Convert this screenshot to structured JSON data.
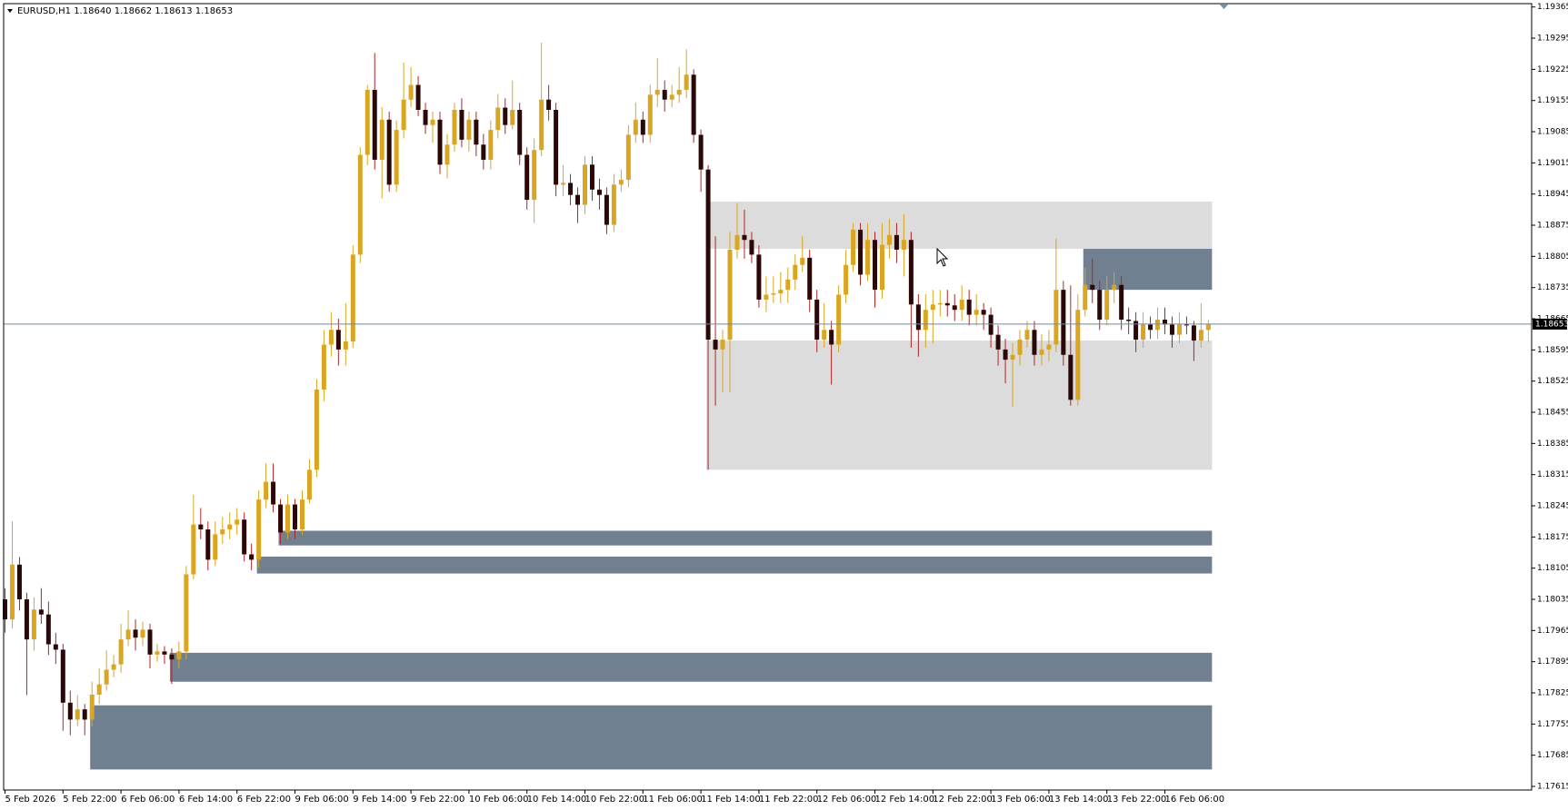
{
  "chart_data": {
    "type": "candlestick",
    "title": "EURUSD,H1  1.18640 1.18662 1.18613 1.18653",
    "ylim": [
      1.17615,
      1.19365
    ],
    "yticks": [
      1.19365,
      1.19295,
      1.19225,
      1.19155,
      1.19085,
      1.19015,
      1.18945,
      1.18875,
      1.18805,
      1.18735,
      1.18665,
      1.18595,
      1.18525,
      1.18455,
      1.18385,
      1.18315,
      1.18245,
      1.18175,
      1.18105,
      1.18035,
      1.17965,
      1.17895,
      1.17825,
      1.17755,
      1.17685,
      1.17615
    ],
    "xticks": [
      {
        "value": 0,
        "label": "5 Feb 2026"
      },
      {
        "value": 8,
        "label": "5 Feb 22:00"
      },
      {
        "value": 16,
        "label": "6 Feb 06:00"
      },
      {
        "value": 24,
        "label": "6 Feb 14:00"
      },
      {
        "value": 32,
        "label": "6 Feb 22:00"
      },
      {
        "value": 40,
        "label": "9 Feb 06:00"
      },
      {
        "value": 48,
        "label": "9 Feb 14:00"
      },
      {
        "value": 56,
        "label": "9 Feb 22:00"
      },
      {
        "value": 64,
        "label": "10 Feb 06:00"
      },
      {
        "value": 72,
        "label": "10 Feb 14:00"
      },
      {
        "value": 80,
        "label": "10 Feb 22:00"
      },
      {
        "value": 88,
        "label": "11 Feb 06:00"
      },
      {
        "value": 96,
        "label": "11 Feb 14:00"
      },
      {
        "value": 104,
        "label": "11 Feb 22:00"
      },
      {
        "value": 112,
        "label": "12 Feb 06:00"
      },
      {
        "value": 120,
        "label": "12 Feb 14:00"
      },
      {
        "value": 128,
        "label": "12 Feb 22:00"
      },
      {
        "value": 136,
        "label": "13 Feb 06:00"
      },
      {
        "value": 144,
        "label": "13 Feb 14:00"
      },
      {
        "value": 152,
        "label": "13 Feb 22:00"
      },
      {
        "value": 160,
        "label": "16 Feb 06:00"
      }
    ],
    "last_price": 1.18653,
    "bull_color": "#daa520",
    "bear_color": "#2a0808",
    "bear_wick_color": "#b22222",
    "price_line_color": "#778899",
    "zones": [
      {
        "start": 97,
        "low": 1.18822,
        "high": 1.18928,
        "color": "#dcdcdc"
      },
      {
        "start": 97,
        "low": 1.18326,
        "high": 1.18616,
        "color": "#dcdcdc"
      },
      {
        "start": 149,
        "low": 1.1873,
        "high": 1.18822,
        "color": "#708090"
      },
      {
        "start": 38,
        "low": 1.18156,
        "high": 1.18189,
        "color": "#708090"
      },
      {
        "start": 35,
        "low": 1.18093,
        "high": 1.18131,
        "color": "#708090"
      },
      {
        "start": 23,
        "low": 1.1785,
        "high": 1.17915,
        "color": "#708090"
      },
      {
        "start": 12,
        "low": 1.17653,
        "high": 1.17797,
        "color": "#708090"
      }
    ],
    "open": [
      1.18035,
      1.1799,
      1.18113,
      1.18035,
      1.17945,
      1.18012,
      1.18001,
      1.17934,
      1.17922,
      1.17803,
      1.17765,
      1.17788,
      1.17765,
      1.17821,
      1.17844,
      1.17877,
      1.17889,
      1.17945,
      1.17967,
      1.17949,
      1.17967,
      1.17911,
      1.17918,
      1.17911,
      1.179,
      1.17918,
      1.18091,
      1.18203,
      1.18192,
      1.18124,
      1.18181,
      1.18192,
      1.18203,
      1.18214,
      1.18136,
      1.18124,
      1.18259,
      1.18299,
      1.18248,
      1.18185,
      1.18248,
      1.18192,
      1.18259,
      1.18326,
      1.18506,
      1.18607,
      1.1864,
      1.18596,
      1.18614,
      1.18809,
      1.19033,
      1.19179,
      1.19022,
      1.19112,
      1.18966,
      1.19089,
      1.19157,
      1.1919,
      1.19134,
      1.191,
      1.19112,
      1.19011,
      1.19056,
      1.19134,
      1.19067,
      1.19112,
      1.19056,
      1.19022,
      1.19089,
      1.19139,
      1.191,
      1.19134,
      1.19033,
      1.18932,
      1.19044,
      1.19157,
      1.19134,
      1.18966,
      1.1897,
      1.18943,
      1.18921,
      1.19011,
      1.18955,
      1.18943,
      1.18876,
      1.18966,
      1.18977,
      1.19078,
      1.19112,
      1.19078,
      1.19168,
      1.19179,
      1.19157,
      1.19168,
      1.19179,
      1.19213,
      1.19078,
      1.19,
      1.18618,
      1.18596,
      1.18618,
      1.1882,
      1.18853,
      1.18842,
      1.18809,
      1.18708,
      1.18719,
      1.18722,
      1.1873,
      1.18753,
      1.18786,
      1.18802,
      1.18708,
      1.18618,
      1.1864,
      1.18607,
      1.18719,
      1.18786,
      1.18865,
      1.18764,
      1.18842,
      1.1873,
      1.18831,
      1.18853,
      1.1882,
      1.18842,
      1.18697,
      1.1864,
      1.18685,
      1.18697,
      1.187,
      1.18695,
      1.18685,
      1.18708,
      1.18674,
      1.18685,
      1.18674,
      1.18629,
      1.18596,
      1.18573,
      1.18584,
      1.18618,
      1.1864,
      1.18584,
      1.18596,
      1.18607,
      1.1873,
      1.18584,
      1.18483,
      1.18685,
      1.18741,
      1.1873,
      1.18663,
      1.1873,
      1.18741,
      1.18663,
      1.1866,
      1.18618,
      1.18652,
      1.1864,
      1.18663,
      1.18652,
      1.18629,
      1.18652,
      1.1865,
      1.18616,
      1.1864
    ],
    "high": [
      1.1806,
      1.1821,
      1.1813,
      1.1805,
      1.1804,
      1.1806,
      1.1803,
      1.1796,
      1.17935,
      1.1783,
      1.1782,
      1.178,
      1.1785,
      1.1788,
      1.1792,
      1.1791,
      1.1798,
      1.1801,
      1.1799,
      1.17985,
      1.1798,
      1.17935,
      1.1793,
      1.17925,
      1.1794,
      1.1811,
      1.1827,
      1.1824,
      1.1821,
      1.1821,
      1.1822,
      1.1823,
      1.1824,
      1.1823,
      1.1816,
      1.1828,
      1.1834,
      1.1834,
      1.1826,
      1.1827,
      1.1826,
      1.1828,
      1.1835,
      1.1853,
      1.1864,
      1.1868,
      1.18665,
      1.187,
      1.1883,
      1.1905,
      1.1919,
      1.19262,
      1.1914,
      1.1913,
      1.1911,
      1.1924,
      1.1923,
      1.1921,
      1.1915,
      1.1913,
      1.1913,
      1.1908,
      1.1915,
      1.1916,
      1.1913,
      1.1913,
      1.1908,
      1.1911,
      1.1917,
      1.1916,
      1.192,
      1.1915,
      1.1905,
      1.1907,
      1.19285,
      1.1919,
      1.1915,
      1.1901,
      1.1899,
      1.1896,
      1.1903,
      1.1903,
      1.1898,
      1.1896,
      1.1899,
      1.19,
      1.191,
      1.1915,
      1.1913,
      1.1919,
      1.1925,
      1.192,
      1.1919,
      1.1923,
      1.1927,
      1.19225,
      1.1909,
      1.1901,
      1.1885,
      1.1864,
      1.1886,
      1.18925,
      1.1891,
      1.1886,
      1.1883,
      1.1876,
      1.1876,
      1.1877,
      1.1878,
      1.1881,
      1.1885,
      1.1882,
      1.1873,
      1.187,
      1.1866,
      1.1874,
      1.1882,
      1.1888,
      1.1888,
      1.1888,
      1.1886,
      1.1888,
      1.1889,
      1.1888,
      1.189,
      1.1886,
      1.1872,
      1.1872,
      1.1873,
      1.1873,
      1.1873,
      1.1872,
      1.1874,
      1.1873,
      1.1872,
      1.187,
      1.1869,
      1.1865,
      1.1862,
      1.1861,
      1.1864,
      1.1866,
      1.1866,
      1.1863,
      1.1864,
      1.18845,
      1.1875,
      1.1874,
      1.1872,
      1.1878,
      1.188,
      1.1875,
      1.1876,
      1.1877,
      1.1876,
      1.1869,
      1.1868,
      1.1868,
      1.1867,
      1.1869,
      1.1869,
      1.1867,
      1.1868,
      1.1867,
      1.1866,
      1.187,
      1.18662
    ],
    "low": [
      1.1796,
      1.1797,
      1.1801,
      1.1782,
      1.1792,
      1.1798,
      1.1791,
      1.1789,
      1.1774,
      1.1773,
      1.1775,
      1.1773,
      1.1775,
      1.178,
      1.1783,
      1.1786,
      1.1787,
      1.1793,
      1.1792,
      1.1793,
      1.1788,
      1.17895,
      1.1789,
      1.17845,
      1.1788,
      1.179,
      1.1808,
      1.1817,
      1.181,
      1.1811,
      1.1816,
      1.1817,
      1.1818,
      1.1812,
      1.181,
      1.18105,
      1.1824,
      1.1823,
      1.1816,
      1.1817,
      1.1817,
      1.1818,
      1.1825,
      1.1831,
      1.1848,
      1.1858,
      1.1856,
      1.1856,
      1.186,
      1.1879,
      1.1901,
      1.19,
      1.18935,
      1.1895,
      1.1895,
      1.1907,
      1.1914,
      1.1912,
      1.1908,
      1.1906,
      1.1899,
      1.1898,
      1.1904,
      1.1905,
      1.1904,
      1.1903,
      1.19,
      1.19,
      1.1907,
      1.1908,
      1.1909,
      1.1901,
      1.1891,
      1.1888,
      1.1903,
      1.1911,
      1.1894,
      1.1894,
      1.1892,
      1.1888,
      1.189,
      1.1893,
      1.1891,
      1.18855,
      1.1886,
      1.1895,
      1.1896,
      1.1906,
      1.1906,
      1.1906,
      1.1914,
      1.1913,
      1.1914,
      1.1915,
      1.1916,
      1.1906,
      1.1895,
      1.18326,
      1.1847,
      1.185,
      1.185,
      1.188,
      1.188,
      1.1879,
      1.1869,
      1.1868,
      1.187,
      1.187,
      1.187,
      1.1873,
      1.1877,
      1.1868,
      1.1859,
      1.186,
      1.18517,
      1.1859,
      1.187,
      1.1877,
      1.1874,
      1.1875,
      1.1869,
      1.1871,
      1.188,
      1.1879,
      1.1876,
      1.186,
      1.1858,
      1.186,
      1.1861,
      1.1867,
      1.1867,
      1.1866,
      1.1866,
      1.1865,
      1.1865,
      1.1864,
      1.186,
      1.1856,
      1.1852,
      1.18468,
      1.1856,
      1.186,
      1.1856,
      1.1856,
      1.1857,
      1.1859,
      1.1856,
      1.1847,
      1.1847,
      1.1867,
      1.187,
      1.1864,
      1.1865,
      1.187,
      1.1864,
      1.1863,
      1.1859,
      1.186,
      1.1862,
      1.1862,
      1.1863,
      1.186,
      1.1861,
      1.1863,
      1.1857,
      1.186,
      1.18613
    ],
    "close": [
      1.1799,
      1.18113,
      1.18035,
      1.17945,
      1.18012,
      1.18001,
      1.17934,
      1.17922,
      1.17803,
      1.17765,
      1.17788,
      1.17765,
      1.17821,
      1.17844,
      1.17877,
      1.17889,
      1.17945,
      1.17967,
      1.17949,
      1.17967,
      1.17911,
      1.17918,
      1.17911,
      1.179,
      1.17918,
      1.18091,
      1.18203,
      1.18192,
      1.18124,
      1.18181,
      1.18192,
      1.18203,
      1.18214,
      1.18136,
      1.18124,
      1.18259,
      1.18299,
      1.18248,
      1.18185,
      1.18248,
      1.18192,
      1.18259,
      1.18326,
      1.18506,
      1.18607,
      1.1864,
      1.18596,
      1.18614,
      1.18809,
      1.19033,
      1.19179,
      1.19022,
      1.19112,
      1.18966,
      1.19089,
      1.19157,
      1.1919,
      1.19134,
      1.191,
      1.19112,
      1.19011,
      1.19056,
      1.19134,
      1.19067,
      1.19112,
      1.19056,
      1.19022,
      1.19089,
      1.19139,
      1.191,
      1.19134,
      1.19033,
      1.18932,
      1.19044,
      1.19157,
      1.19134,
      1.18966,
      1.1897,
      1.18943,
      1.18921,
      1.19011,
      1.18955,
      1.18943,
      1.18876,
      1.18966,
      1.18977,
      1.19078,
      1.19112,
      1.19078,
      1.19168,
      1.19179,
      1.19157,
      1.19168,
      1.19179,
      1.19213,
      1.19078,
      1.19,
      1.18618,
      1.18596,
      1.18618,
      1.1882,
      1.18853,
      1.18842,
      1.18809,
      1.18708,
      1.18719,
      1.18722,
      1.1873,
      1.18753,
      1.18786,
      1.18802,
      1.18708,
      1.18618,
      1.1864,
      1.18607,
      1.18719,
      1.18786,
      1.18865,
      1.18764,
      1.18842,
      1.1873,
      1.18831,
      1.18853,
      1.1882,
      1.18842,
      1.18697,
      1.1864,
      1.18685,
      1.18697,
      1.187,
      1.18695,
      1.18685,
      1.18708,
      1.18674,
      1.18685,
      1.18674,
      1.18629,
      1.18596,
      1.18573,
      1.18584,
      1.18618,
      1.1864,
      1.18584,
      1.18596,
      1.18607,
      1.1873,
      1.18584,
      1.18483,
      1.18685,
      1.18741,
      1.1873,
      1.18663,
      1.1873,
      1.18741,
      1.18663,
      1.1866,
      1.18618,
      1.18652,
      1.1864,
      1.18663,
      1.18652,
      1.18629,
      1.18652,
      1.1865,
      1.18616,
      1.1864,
      1.18653
    ]
  }
}
